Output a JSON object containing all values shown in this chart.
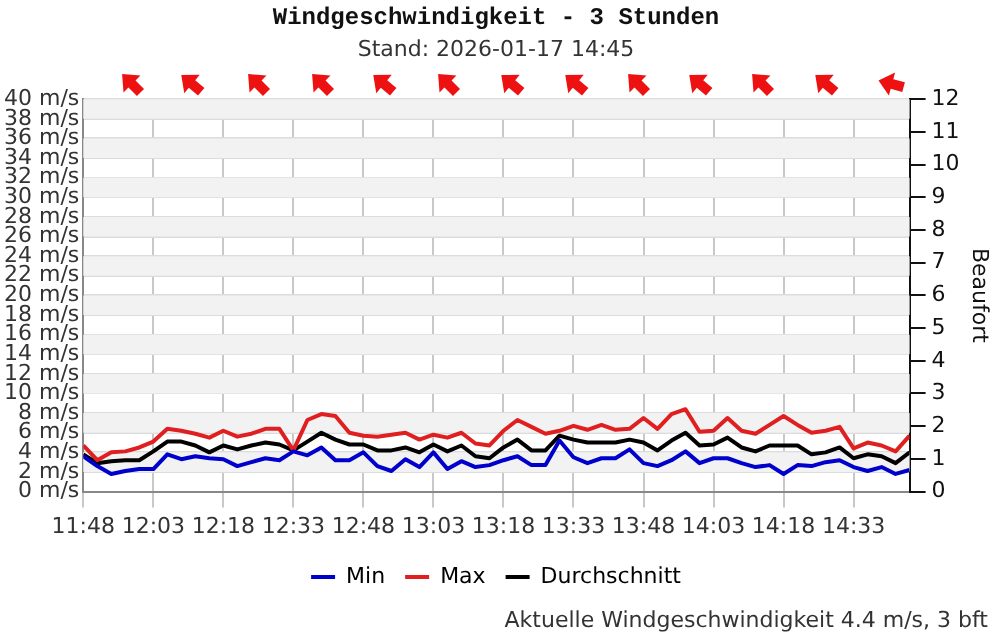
{
  "chart_data": {
    "type": "line",
    "title": "Windgeschwindigkeit - 3 Stunden",
    "subtitle": "Stand: 2026-01-17 14:45",
    "y2label": "Beaufort",
    "annotations": [
      "Aktuelle Windgeschwindigkeit 4.4 m/s, 3 bft"
    ],
    "x": [
      11.8,
      11.85,
      11.9,
      11.95,
      12.0,
      12.05,
      12.1,
      12.15,
      12.2,
      12.25,
      12.3,
      12.35,
      12.4,
      12.45,
      12.5,
      12.55,
      12.6,
      12.65,
      12.7,
      12.75,
      12.8,
      12.85,
      12.9,
      12.95,
      13.0,
      13.05,
      13.1,
      13.15,
      13.2,
      13.25,
      13.3,
      13.35,
      13.4,
      13.45,
      13.5,
      13.55,
      13.6,
      13.65,
      13.7,
      13.75,
      13.8,
      13.85,
      13.9,
      13.95,
      14.0,
      14.05,
      14.1,
      14.15,
      14.2,
      14.25,
      14.3,
      14.35,
      14.4,
      14.45,
      14.5,
      14.55,
      14.6,
      14.65,
      14.7,
      14.75
    ],
    "series": [
      {
        "name": "Min",
        "color": "#0000cc",
        "values": [
          3.6,
          2.6,
          1.8,
          2.1,
          2.3,
          2.3,
          3.8,
          3.3,
          3.6,
          3.4,
          3.3,
          2.6,
          3.0,
          3.4,
          3.2,
          4.1,
          3.7,
          4.5,
          3.2,
          3.2,
          4.0,
          2.6,
          2.1,
          3.3,
          2.5,
          4.0,
          2.3,
          3.1,
          2.5,
          2.7,
          3.2,
          3.6,
          2.7,
          2.7,
          5.2,
          3.5,
          2.9,
          3.4,
          3.4,
          4.3,
          2.9,
          2.6,
          3.2,
          4.1,
          2.9,
          3.4,
          3.4,
          2.9,
          2.5,
          2.7,
          1.8,
          2.7,
          2.6,
          3.0,
          3.2,
          2.5,
          2.1,
          2.5,
          1.8,
          2.2
        ]
      },
      {
        "name": "Max",
        "color": "#e02020",
        "values": [
          4.7,
          3.2,
          4.0,
          4.1,
          4.5,
          5.1,
          6.4,
          6.2,
          5.9,
          5.5,
          6.2,
          5.6,
          5.9,
          6.4,
          6.4,
          4.2,
          7.3,
          7.9,
          7.7,
          6.0,
          5.7,
          5.6,
          5.8,
          6.0,
          5.3,
          5.8,
          5.5,
          6.0,
          4.9,
          4.7,
          6.2,
          7.3,
          6.6,
          5.9,
          6.2,
          6.7,
          6.3,
          6.8,
          6.3,
          6.4,
          7.5,
          6.4,
          7.9,
          8.4,
          6.1,
          6.2,
          7.5,
          6.2,
          5.9,
          6.8,
          7.7,
          6.8,
          6.0,
          6.2,
          6.6,
          4.4,
          5.0,
          4.7,
          4.1,
          5.7
        ]
      },
      {
        "name": "Durchschnitt",
        "color": "#000000",
        "values": [
          3.8,
          2.9,
          3.1,
          3.2,
          3.2,
          4.1,
          5.1,
          5.1,
          4.7,
          4.0,
          4.7,
          4.3,
          4.7,
          5.0,
          4.8,
          4.2,
          5.1,
          6.0,
          5.3,
          4.8,
          4.8,
          4.2,
          4.2,
          4.5,
          4.0,
          4.8,
          4.1,
          4.7,
          3.6,
          3.4,
          4.5,
          5.3,
          4.2,
          4.2,
          5.7,
          5.3,
          5.0,
          5.0,
          5.0,
          5.3,
          5.0,
          4.2,
          5.2,
          6.0,
          4.7,
          4.8,
          5.5,
          4.5,
          4.1,
          4.7,
          4.7,
          4.7,
          3.8,
          4.0,
          4.5,
          3.4,
          3.8,
          3.6,
          2.9,
          4.0
        ]
      }
    ],
    "xlim": [
      11.8,
      14.75
    ],
    "xticks": [
      {
        "value": 11.8,
        "label": "11:48"
      },
      {
        "value": 12.05,
        "label": "12:03"
      },
      {
        "value": 12.3,
        "label": "12:18"
      },
      {
        "value": 12.55,
        "label": "12:33"
      },
      {
        "value": 12.8,
        "label": "12:48"
      },
      {
        "value": 13.05,
        "label": "13:03"
      },
      {
        "value": 13.3,
        "label": "13:18"
      },
      {
        "value": 13.55,
        "label": "13:33"
      },
      {
        "value": 13.8,
        "label": "13:48"
      },
      {
        "value": 14.05,
        "label": "14:03"
      },
      {
        "value": 14.3,
        "label": "14:18"
      },
      {
        "value": 14.55,
        "label": "14:33"
      }
    ],
    "ylim": [
      0,
      40
    ],
    "yticks": [
      {
        "value": 0,
        "label": "0 m/s"
      },
      {
        "value": 2,
        "label": "2 m/s"
      },
      {
        "value": 4,
        "label": "4 m/s"
      },
      {
        "value": 6,
        "label": "6 m/s"
      },
      {
        "value": 8,
        "label": "8 m/s"
      },
      {
        "value": 10,
        "label": "10 m/s"
      },
      {
        "value": 12,
        "label": "12 m/s"
      },
      {
        "value": 14,
        "label": "14 m/s"
      },
      {
        "value": 16,
        "label": "16 m/s"
      },
      {
        "value": 18,
        "label": "18 m/s"
      },
      {
        "value": 20,
        "label": "20 m/s"
      },
      {
        "value": 22,
        "label": "22 m/s"
      },
      {
        "value": 24,
        "label": "24 m/s"
      },
      {
        "value": 26,
        "label": "26 m/s"
      },
      {
        "value": 28,
        "label": "28 m/s"
      },
      {
        "value": 30,
        "label": "30 m/s"
      },
      {
        "value": 32,
        "label": "32 m/s"
      },
      {
        "value": 34,
        "label": "34 m/s"
      },
      {
        "value": 36,
        "label": "36 m/s"
      },
      {
        "value": 38,
        "label": "38 m/s"
      },
      {
        "value": 40,
        "label": "40 m/s"
      }
    ],
    "y2lim": [
      0,
      12
    ],
    "y2ticks": [
      0,
      1,
      2,
      3,
      4,
      5,
      6,
      7,
      8,
      9,
      10,
      11,
      12
    ],
    "grid": true,
    "legend": "bottom",
    "marker": "none",
    "line_style": "solid"
  }
}
